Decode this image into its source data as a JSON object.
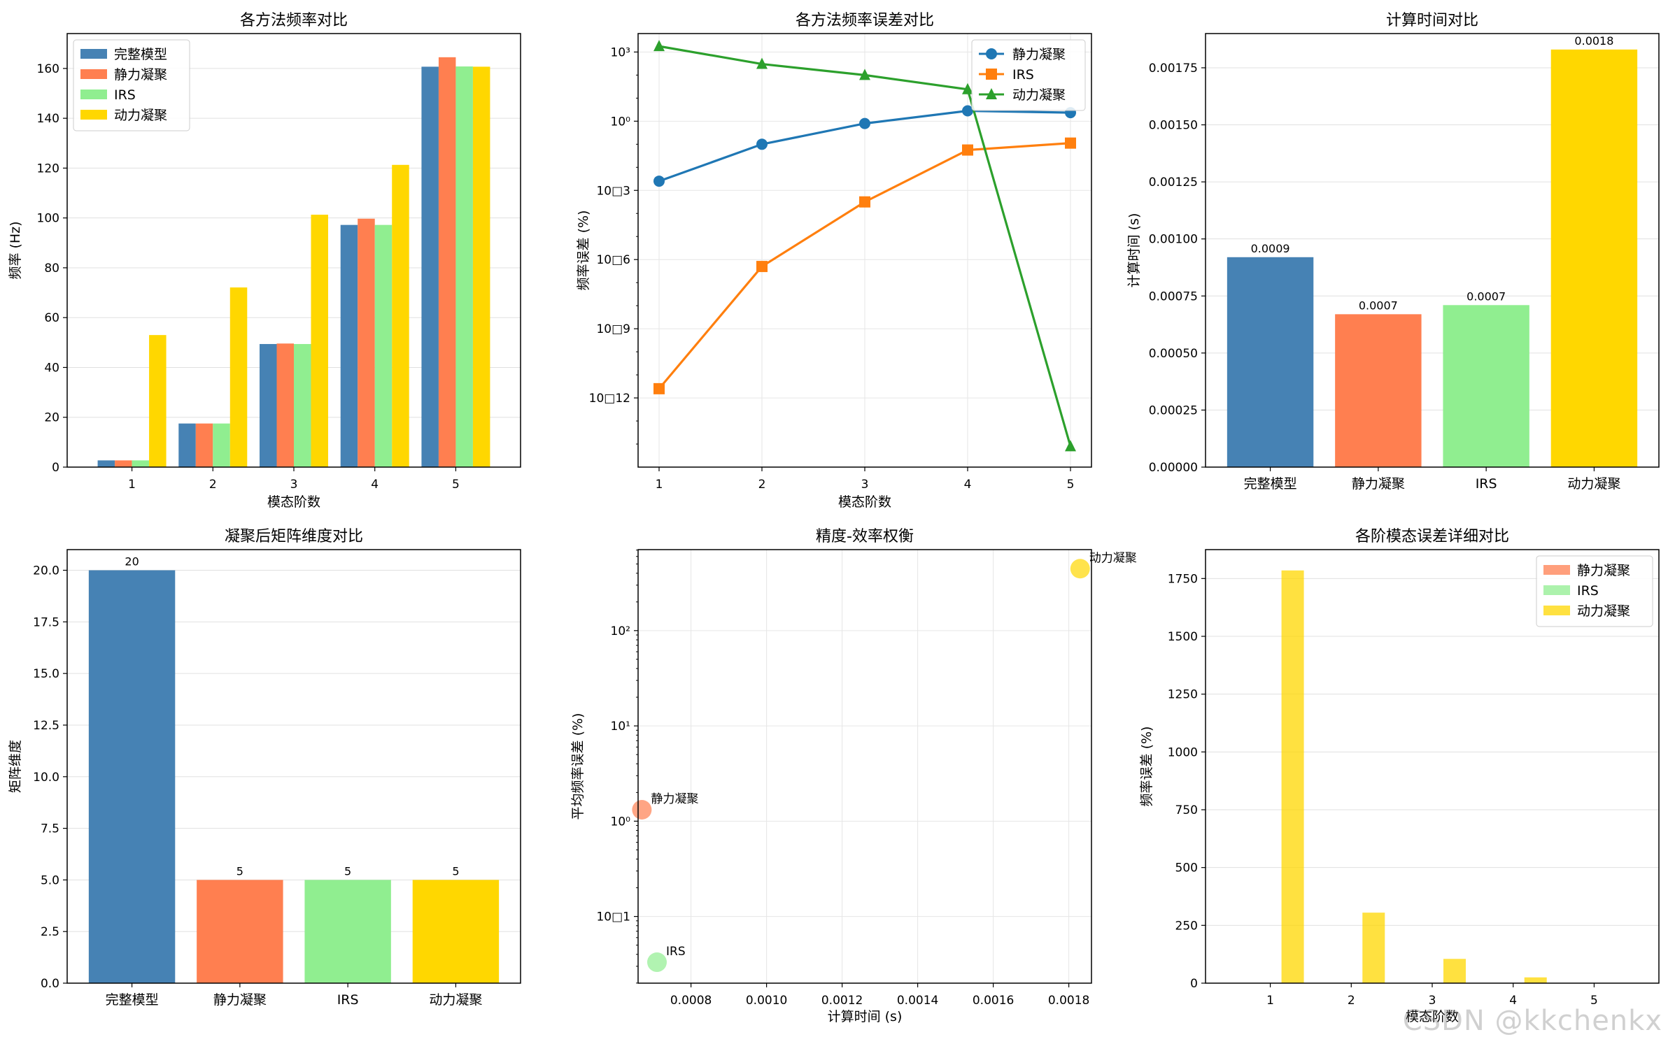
{
  "colors": {
    "full": "#4682B4",
    "static": "#FF7F50",
    "irs": "#90EE90",
    "dynamic": "#FFD700",
    "line_static": "#1f77b4",
    "line_irs": "#ff7f0e",
    "line_dynamic": "#2ca02c"
  },
  "watermark": "CSDN @kkchenkx",
  "chart_data": [
    {
      "id": "freq",
      "type": "bar",
      "title": "各方法频率对比",
      "xlabel": "模态阶数",
      "ylabel": "频率 (Hz)",
      "categories": [
        "1",
        "2",
        "3",
        "4",
        "5"
      ],
      "ylim": [
        0,
        174
      ],
      "yticks": [
        0,
        20,
        40,
        60,
        80,
        100,
        120,
        140,
        160
      ],
      "grid": "y",
      "legend": "top-left",
      "series": [
        {
          "name": "完整模型",
          "color": "#4682B4",
          "values": [
            2.7,
            17.5,
            49.4,
            97.2,
            160.7
          ]
        },
        {
          "name": "静力凝聚",
          "color": "#FF7F50",
          "values": [
            2.7,
            17.5,
            49.6,
            99.7,
            164.5
          ]
        },
        {
          "name": "IRS",
          "color": "#90EE90",
          "values": [
            2.7,
            17.5,
            49.4,
            97.2,
            160.8
          ]
        },
        {
          "name": "动力凝聚",
          "color": "#FFD700",
          "values": [
            53.0,
            72.1,
            101.3,
            121.3,
            160.7
          ]
        }
      ]
    },
    {
      "id": "error",
      "type": "line",
      "title": "各方法频率误差对比",
      "xlabel": "模态阶数",
      "ylabel": "频率误差 (%)",
      "x": [
        1,
        2,
        3,
        4,
        5
      ],
      "yscale": "log",
      "ylim_log10": [
        -15,
        3.8
      ],
      "yticks": [
        {
          "exp": 3,
          "label": "10³"
        },
        {
          "exp": 0,
          "label": "10⁰"
        },
        {
          "exp": -3,
          "label": "10□3"
        },
        {
          "exp": -6,
          "label": "10□6"
        },
        {
          "exp": -9,
          "label": "10□9"
        },
        {
          "exp": -12,
          "label": "10□12"
        }
      ],
      "grid": "both",
      "legend": "top-right",
      "series": [
        {
          "name": "静力凝聚",
          "color": "#1f77b4",
          "marker": "circle",
          "log10_values": [
            -2.6,
            -1.0,
            -0.1,
            0.45,
            0.37
          ]
        },
        {
          "name": "IRS",
          "color": "#ff7f0e",
          "marker": "square",
          "log10_values": [
            -11.6,
            -6.3,
            -3.5,
            -1.25,
            -0.95
          ]
        },
        {
          "name": "动力凝聚",
          "color": "#2ca02c",
          "marker": "triangle",
          "log10_values": [
            3.25,
            2.48,
            2.0,
            1.38,
            -14.1
          ]
        }
      ]
    },
    {
      "id": "time",
      "type": "bar",
      "title": "计算时间对比",
      "xlabel": "",
      "ylabel": "计算时间 (s)",
      "categories": [
        "完整模型",
        "静力凝聚",
        "IRS",
        "动力凝聚"
      ],
      "values": [
        0.00092,
        0.00067,
        0.00071,
        0.00183
      ],
      "value_labels": [
        "0.0009",
        "0.0007",
        "0.0007",
        "0.0018"
      ],
      "colors": [
        "#4682B4",
        "#FF7F50",
        "#90EE90",
        "#FFD700"
      ],
      "ylim": [
        0,
        0.0019
      ],
      "yticks": [
        0,
        0.00025,
        0.0005,
        0.00075,
        0.001,
        0.00125,
        0.0015,
        0.00175
      ],
      "ytick_labels": [
        "0.00000",
        "0.00025",
        "0.00050",
        "0.00075",
        "0.00100",
        "0.00125",
        "0.00150",
        "0.00175"
      ],
      "grid": "y"
    },
    {
      "id": "dim",
      "type": "bar",
      "title": "凝聚后矩阵维度对比",
      "xlabel": "",
      "ylabel": "矩阵维度",
      "categories": [
        "完整模型",
        "静力凝聚",
        "IRS",
        "动力凝聚"
      ],
      "values": [
        20,
        5,
        5,
        5
      ],
      "value_labels": [
        "20",
        "5",
        "5",
        "5"
      ],
      "colors": [
        "#4682B4",
        "#FF7F50",
        "#90EE90",
        "#FFD700"
      ],
      "ylim": [
        0,
        21
      ],
      "yticks": [
        0,
        2.5,
        5,
        7.5,
        10,
        12.5,
        15,
        17.5,
        20
      ],
      "ytick_labels": [
        "0.0",
        "2.5",
        "5.0",
        "7.5",
        "10.0",
        "12.5",
        "15.0",
        "17.5",
        "20.0"
      ],
      "grid": "y"
    },
    {
      "id": "tradeoff",
      "type": "scatter",
      "title": "精度-效率权衡",
      "xlabel": "计算时间 (s)",
      "ylabel": "平均频率误差 (%)",
      "xlim": [
        0.00066,
        0.00186
      ],
      "xticks": [
        0.0008,
        0.001,
        0.0012,
        0.0014,
        0.0016,
        0.0018
      ],
      "xtick_labels": [
        "0.0008",
        "0.0010",
        "0.0012",
        "0.0014",
        "0.0016",
        "0.0018"
      ],
      "yscale": "log",
      "ylim_log10": [
        -1.7,
        2.85
      ],
      "yticks": [
        {
          "exp": 2,
          "label": "10²"
        },
        {
          "exp": 1,
          "label": "10¹"
        },
        {
          "exp": 0,
          "label": "10⁰"
        },
        {
          "exp": -1,
          "label": "10□1"
        }
      ],
      "grid": "both",
      "points": [
        {
          "name": "静力凝聚",
          "x": 0.00067,
          "log10_y": 0.12,
          "color": "#FF7F50"
        },
        {
          "name": "IRS",
          "x": 0.00071,
          "log10_y": -1.48,
          "color": "#90EE90"
        },
        {
          "name": "动力凝聚",
          "x": 0.00183,
          "log10_y": 2.65,
          "color": "#FFD700"
        }
      ]
    },
    {
      "id": "detail",
      "type": "bar",
      "title": "各阶模态误差详细对比",
      "xlabel": "模态阶数",
      "ylabel": "频率误差 (%)",
      "categories": [
        "1",
        "2",
        "3",
        "4",
        "5"
      ],
      "ylim": [
        0,
        1875
      ],
      "yticks": [
        0,
        250,
        500,
        750,
        1000,
        1250,
        1500,
        1750
      ],
      "grid": "y",
      "legend": "top-right",
      "series": [
        {
          "name": "静力凝聚",
          "color": "#FF7F50",
          "values": [
            0,
            0,
            0,
            0,
            0
          ]
        },
        {
          "name": "IRS",
          "color": "#90EE90",
          "values": [
            0,
            0,
            0,
            0,
            0
          ]
        },
        {
          "name": "动力凝聚",
          "color": "#FFD700",
          "values": [
            1785,
            305,
            105,
            25,
            0
          ]
        }
      ]
    }
  ]
}
